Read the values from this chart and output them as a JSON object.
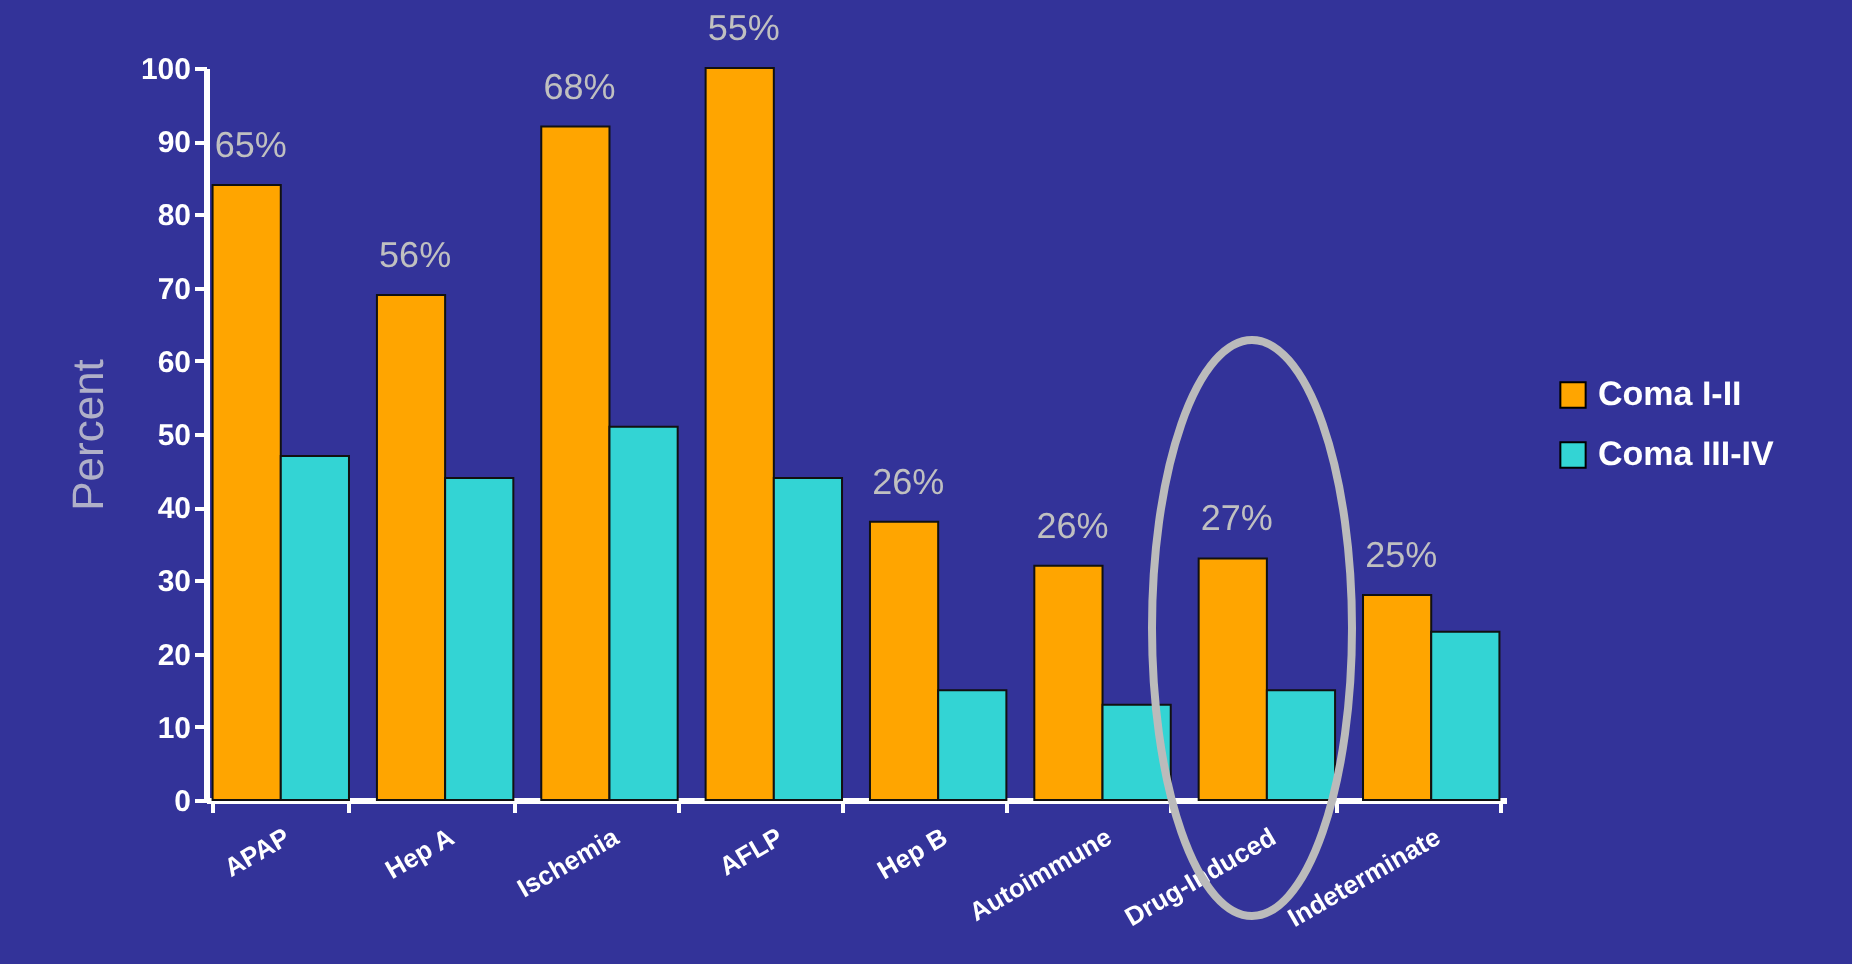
{
  "chart_data": {
    "type": "bar",
    "ylabel": "Percent",
    "categories": [
      "APAP",
      "Hep A",
      "Ischemia",
      "AFLP",
      "Hep B",
      "Autoimmune",
      "Drug-Induced",
      "Indeterminate"
    ],
    "series": [
      {
        "name": "Coma I-II",
        "color": "#ffa500",
        "values": [
          84,
          69,
          92,
          100,
          38,
          32,
          33,
          28
        ]
      },
      {
        "name": "Coma III-IV",
        "color": "#33d4d4",
        "values": [
          47,
          44,
          51,
          44,
          15,
          13,
          15,
          23
        ]
      }
    ],
    "ylim": [
      0,
      100
    ],
    "yticks": [
      0,
      10,
      20,
      30,
      40,
      50,
      60,
      70,
      80,
      90,
      100
    ],
    "grid": false,
    "legend": "right",
    "annotations": [
      {
        "text": "65%",
        "x": "APAP",
        "y": 84
      },
      {
        "text": "56%",
        "x": "Hep A",
        "y": 69
      },
      {
        "text": "68%",
        "x": "Ischemia",
        "y": 92
      },
      {
        "text": "55%",
        "x": "AFLP",
        "y": 100
      },
      {
        "text": "26%",
        "x": "Hep B",
        "y": 38
      },
      {
        "text": "26%",
        "x": "Autoimmune",
        "y": 32
      },
      {
        "text": "27%",
        "x": "Drug-Induced",
        "y": 33
      },
      {
        "text": "25%",
        "x": "Indeterminate",
        "y": 28
      }
    ]
  }
}
